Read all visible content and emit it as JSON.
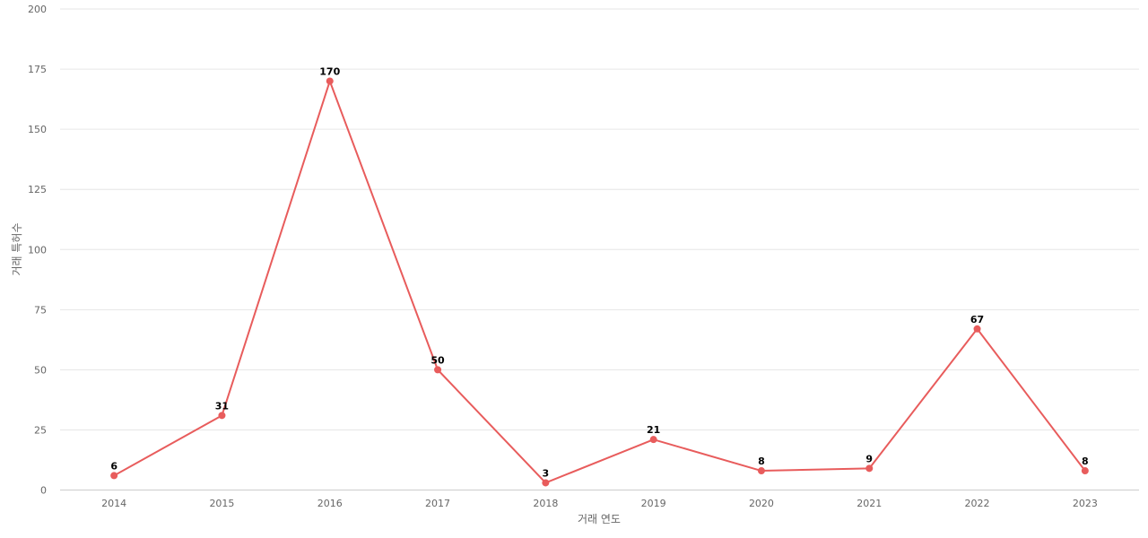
{
  "chart_data": {
    "type": "line",
    "title": "",
    "xlabel": "거래 연도",
    "ylabel": "거래 특허수",
    "categories": [
      "2014",
      "2015",
      "2016",
      "2017",
      "2018",
      "2019",
      "2020",
      "2021",
      "2022",
      "2023"
    ],
    "series": [
      {
        "values": [
          6,
          31,
          170,
          50,
          3,
          21,
          8,
          9,
          67,
          8
        ]
      }
    ],
    "ylim": [
      0,
      200
    ],
    "yticks": [
      0,
      25,
      50,
      75,
      100,
      125,
      150,
      175,
      200
    ],
    "grid": true,
    "legend": "none",
    "data_labels": true,
    "colors": {
      "line": "#e85c5c"
    }
  }
}
